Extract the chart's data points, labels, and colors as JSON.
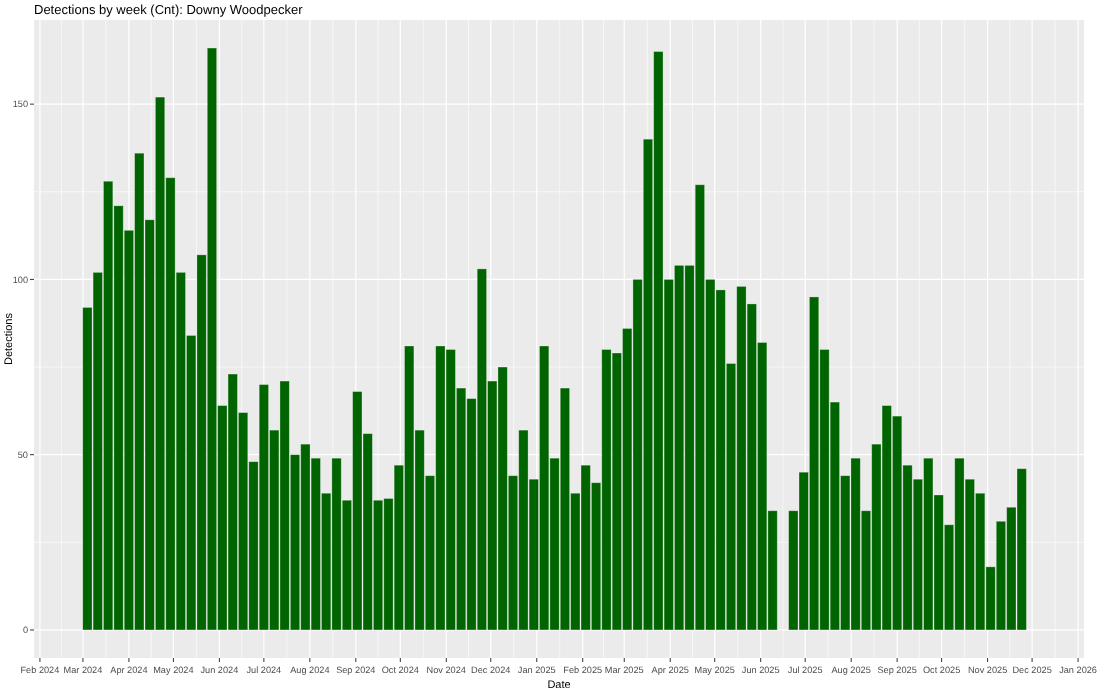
{
  "chart_data": {
    "type": "bar",
    "title": "Detections by week (Cnt): Downy Woodpecker",
    "xlabel": "Date",
    "ylabel": "Detections",
    "x": [
      "2024-03-04",
      "2024-03-11",
      "2024-03-18",
      "2024-03-25",
      "2024-04-01",
      "2024-04-08",
      "2024-04-15",
      "2024-04-22",
      "2024-04-29",
      "2024-05-06",
      "2024-05-13",
      "2024-05-20",
      "2024-05-27",
      "2024-06-03",
      "2024-06-10",
      "2024-06-17",
      "2024-06-24",
      "2024-07-01",
      "2024-07-08",
      "2024-07-15",
      "2024-07-22",
      "2024-07-29",
      "2024-08-05",
      "2024-08-12",
      "2024-08-19",
      "2024-08-26",
      "2024-09-02",
      "2024-09-09",
      "2024-09-16",
      "2024-09-23",
      "2024-09-30",
      "2024-10-07",
      "2024-10-14",
      "2024-10-21",
      "2024-10-28",
      "2024-11-04",
      "2024-11-11",
      "2024-11-18",
      "2024-11-25",
      "2024-12-02",
      "2024-12-09",
      "2024-12-16",
      "2024-12-23",
      "2024-12-30",
      "2025-01-06",
      "2025-01-13",
      "2025-01-20",
      "2025-01-27",
      "2025-02-03",
      "2025-02-10",
      "2025-02-17",
      "2025-02-24",
      "2025-03-03",
      "2025-03-10",
      "2025-03-17",
      "2025-03-24",
      "2025-03-31",
      "2025-04-07",
      "2025-04-14",
      "2025-04-21",
      "2025-04-28",
      "2025-05-05",
      "2025-05-12",
      "2025-05-19",
      "2025-05-26",
      "2025-06-02",
      "2025-06-09",
      "2025-06-16",
      "2025-06-23",
      "2025-06-30",
      "2025-07-07",
      "2025-07-14",
      "2025-07-21",
      "2025-07-28",
      "2025-08-04",
      "2025-08-11",
      "2025-08-18",
      "2025-08-25",
      "2025-09-01",
      "2025-09-08",
      "2025-09-15",
      "2025-09-22",
      "2025-09-29",
      "2025-10-06",
      "2025-10-13",
      "2025-10-20",
      "2025-10-27",
      "2025-11-03",
      "2025-11-10",
      "2025-11-17",
      "2025-11-24"
    ],
    "values": [
      92,
      102,
      128,
      121,
      114,
      136,
      117,
      152,
      129,
      102,
      84,
      107,
      166,
      64,
      73,
      62,
      48,
      70,
      57,
      71,
      50,
      53,
      49,
      39,
      49,
      37,
      68,
      56,
      37,
      37.5,
      47,
      81,
      57,
      44,
      81,
      80,
      69,
      66,
      103,
      71,
      75,
      44,
      57,
      43,
      81,
      49,
      69,
      39,
      47,
      42,
      80,
      79,
      86,
      100,
      140,
      165,
      100,
      104,
      104,
      127,
      100,
      97,
      76,
      98,
      93,
      82,
      34,
      null,
      34,
      45,
      95,
      80,
      65,
      44,
      49,
      34,
      53,
      64,
      61,
      47,
      43,
      49,
      38.5,
      30,
      49,
      43,
      39,
      18,
      31,
      35,
      46
    ],
    "color": "#006400",
    "xlim": [
      "2024-01-28",
      "2026-01-05"
    ],
    "xticks": [
      {
        "value": "2024-02",
        "label": "Feb 2024"
      },
      {
        "value": "2024-03",
        "label": "Mar 2024"
      },
      {
        "value": "2024-04",
        "label": "Apr 2024"
      },
      {
        "value": "2024-05",
        "label": "May 2024"
      },
      {
        "value": "2024-06",
        "label": "Jun 2024"
      },
      {
        "value": "2024-07",
        "label": "Jul 2024"
      },
      {
        "value": "2024-08",
        "label": "Aug 2024"
      },
      {
        "value": "2024-09",
        "label": "Sep 2024"
      },
      {
        "value": "2024-10",
        "label": "Oct 2024"
      },
      {
        "value": "2024-11",
        "label": "Nov 2024"
      },
      {
        "value": "2024-12",
        "label": "Dec 2024"
      },
      {
        "value": "2025-01",
        "label": "Jan 2025"
      },
      {
        "value": "2025-02",
        "label": "Feb 2025"
      },
      {
        "value": "2025-03",
        "label": "Mar 2025"
      },
      {
        "value": "2025-04",
        "label": "Apr 2025"
      },
      {
        "value": "2025-05",
        "label": "May 2025"
      },
      {
        "value": "2025-06",
        "label": "Jun 2025"
      },
      {
        "value": "2025-07",
        "label": "Jul 2025"
      },
      {
        "value": "2025-08",
        "label": "Aug 2025"
      },
      {
        "value": "2025-09",
        "label": "Sep 2025"
      },
      {
        "value": "2025-10",
        "label": "Oct 2025"
      },
      {
        "value": "2025-11",
        "label": "Nov 2025"
      },
      {
        "value": "2025-12",
        "label": "Dec 2025"
      },
      {
        "value": "2026-01",
        "label": "Jan 2026"
      }
    ],
    "ylim": [
      -8,
      174
    ],
    "yticks": [
      0,
      50,
      100,
      150
    ],
    "grid": true
  }
}
